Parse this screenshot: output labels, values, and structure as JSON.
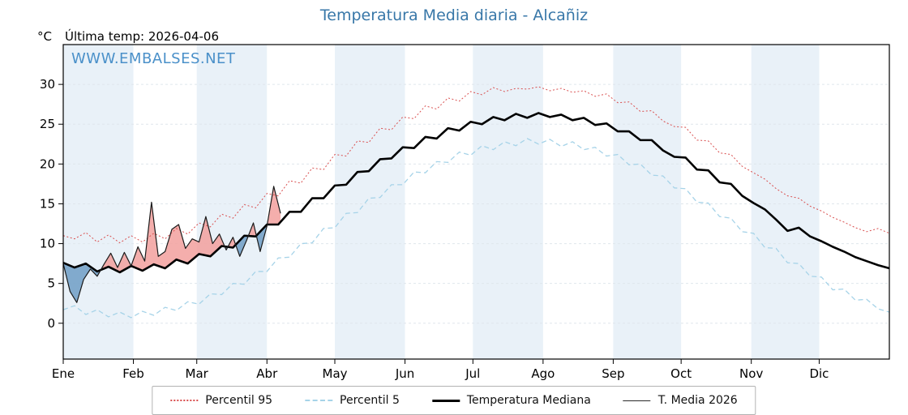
{
  "title": "Temperatura Media diaria - Alcañiz",
  "watermark": "WWW.EMBALSES.NET",
  "header": {
    "unit_label": "°C",
    "last_temp": "Última temp: 2026-04-06"
  },
  "legend": [
    {
      "id": "p95",
      "label": "Percentil 95",
      "style": "dotted",
      "color": "#d94f4f"
    },
    {
      "id": "p5",
      "label": "Percentil 5",
      "style": "dashed",
      "color": "#a6d3e8"
    },
    {
      "id": "mediana",
      "label": "Temperatura Mediana",
      "style": "thick",
      "color": "#000000"
    },
    {
      "id": "t2026",
      "label": "T. Media 2026",
      "style": "thin",
      "color": "#2a2a2a"
    }
  ],
  "chart_data": {
    "type": "line",
    "title": "Temperatura Media diaria - Alcañiz",
    "xlabel": "",
    "ylabel": "°C",
    "ylim": [
      -4.5,
      35
    ],
    "yticks": [
      0,
      5,
      10,
      15,
      20,
      25,
      30
    ],
    "x_unit": "day_of_year",
    "x_range": [
      0,
      365
    ],
    "month_labels": [
      "Ene",
      "Feb",
      "Mar",
      "Abr",
      "May",
      "Jun",
      "Jul",
      "Ago",
      "Sep",
      "Oct",
      "Nov",
      "Dic"
    ],
    "month_starts": [
      0,
      31,
      59,
      90,
      120,
      151,
      181,
      212,
      243,
      273,
      304,
      334
    ],
    "grid": true,
    "legend_position": "bottom",
    "colors": {
      "band": "#e9f1f8",
      "grid": "#dfe6ec",
      "fill_above": "#f2a09e",
      "fill_below": "#6f9dc6"
    },
    "annotations": {
      "last_date": "2026-04-06"
    },
    "series": [
      {
        "name": "Percentil 95",
        "style": "dotted",
        "color": "#d94f4f",
        "width": 1,
        "x_step": 5,
        "values": [
          11.0,
          10.6,
          11.4,
          10.2,
          11.1,
          10.1,
          11.0,
          10.2,
          11.3,
          10.6,
          11.9,
          11.2,
          12.6,
          12.1,
          13.7,
          13.2,
          14.9,
          14.5,
          16.3,
          16.0,
          17.9,
          17.6,
          19.5,
          19.3,
          21.2,
          21.0,
          22.9,
          22.7,
          24.5,
          24.3,
          25.9,
          25.7,
          27.3,
          26.9,
          28.3,
          27.9,
          29.1,
          28.7,
          29.6,
          29.1,
          29.5,
          29.4,
          29.7,
          29.2,
          29.5,
          29.0,
          29.2,
          28.5,
          28.8,
          27.7,
          27.8,
          26.6,
          26.7,
          25.4,
          24.7,
          24.6,
          23.0,
          22.9,
          21.4,
          21.2,
          19.7,
          18.9,
          18.1,
          16.9,
          16.0,
          15.7,
          14.7,
          14.1,
          13.3,
          12.7,
          12.0,
          11.5,
          11.9,
          11.3
        ]
      },
      {
        "name": "Percentil 5",
        "style": "dashed",
        "color": "#a6d3e8",
        "width": 1.3,
        "x_step": 5,
        "values": [
          1.7,
          2.2,
          1.1,
          1.7,
          0.8,
          1.4,
          0.7,
          1.5,
          1.0,
          2.0,
          1.6,
          2.7,
          2.4,
          3.7,
          3.6,
          5.0,
          4.9,
          6.5,
          6.5,
          8.2,
          8.3,
          10.0,
          10.1,
          11.9,
          12.0,
          13.8,
          13.9,
          15.7,
          15.8,
          17.4,
          17.4,
          19.0,
          18.9,
          20.3,
          20.2,
          21.5,
          21.1,
          22.3,
          21.8,
          22.8,
          22.3,
          23.2,
          22.5,
          23.1,
          22.2,
          22.8,
          21.8,
          22.1,
          21.0,
          21.2,
          19.9,
          20.0,
          18.6,
          18.5,
          17.0,
          16.9,
          15.2,
          15.1,
          13.4,
          13.2,
          11.5,
          11.3,
          9.5,
          9.4,
          7.6,
          7.5,
          5.9,
          5.8,
          4.2,
          4.3,
          2.9,
          3.0,
          1.8,
          1.4
        ]
      },
      {
        "name": "Temperatura Mediana",
        "style": "solid-thick",
        "color": "#000000",
        "width": 2.6,
        "x_step": 5,
        "values": [
          7.6,
          7.0,
          7.5,
          6.5,
          7.1,
          6.4,
          7.2,
          6.6,
          7.4,
          6.9,
          8.0,
          7.5,
          8.7,
          8.4,
          9.7,
          9.5,
          11.0,
          10.9,
          12.4,
          12.4,
          14.0,
          14.0,
          15.7,
          15.7,
          17.3,
          17.4,
          19.0,
          19.1,
          20.6,
          20.7,
          22.1,
          22.0,
          23.4,
          23.2,
          24.5,
          24.2,
          25.3,
          25.0,
          25.9,
          25.5,
          26.3,
          25.8,
          26.4,
          25.9,
          26.2,
          25.5,
          25.8,
          24.9,
          25.1,
          24.1,
          24.1,
          23.0,
          23.0,
          21.7,
          20.9,
          20.8,
          19.3,
          19.2,
          17.7,
          17.5,
          16.0,
          15.1,
          14.3,
          13.0,
          11.6,
          12.0,
          10.9,
          10.3,
          9.6,
          9.0,
          8.3,
          7.8,
          7.3,
          6.9
        ]
      },
      {
        "name": "T. Media 2026",
        "style": "solid-thin",
        "color": "#1a1a1a",
        "width": 1.2,
        "x_step": 3,
        "values": [
          7.5,
          4.0,
          2.6,
          5.5,
          6.8,
          5.9,
          7.4,
          8.8,
          7.0,
          8.9,
          7.2,
          9.6,
          7.8,
          15.2,
          8.4,
          9.0,
          11.8,
          12.4,
          9.4,
          10.6,
          10.2,
          13.4,
          10.0,
          11.2,
          9.2,
          10.8,
          8.4,
          10.4,
          12.6,
          9.0,
          12.2,
          17.2,
          13.8
        ]
      }
    ]
  }
}
